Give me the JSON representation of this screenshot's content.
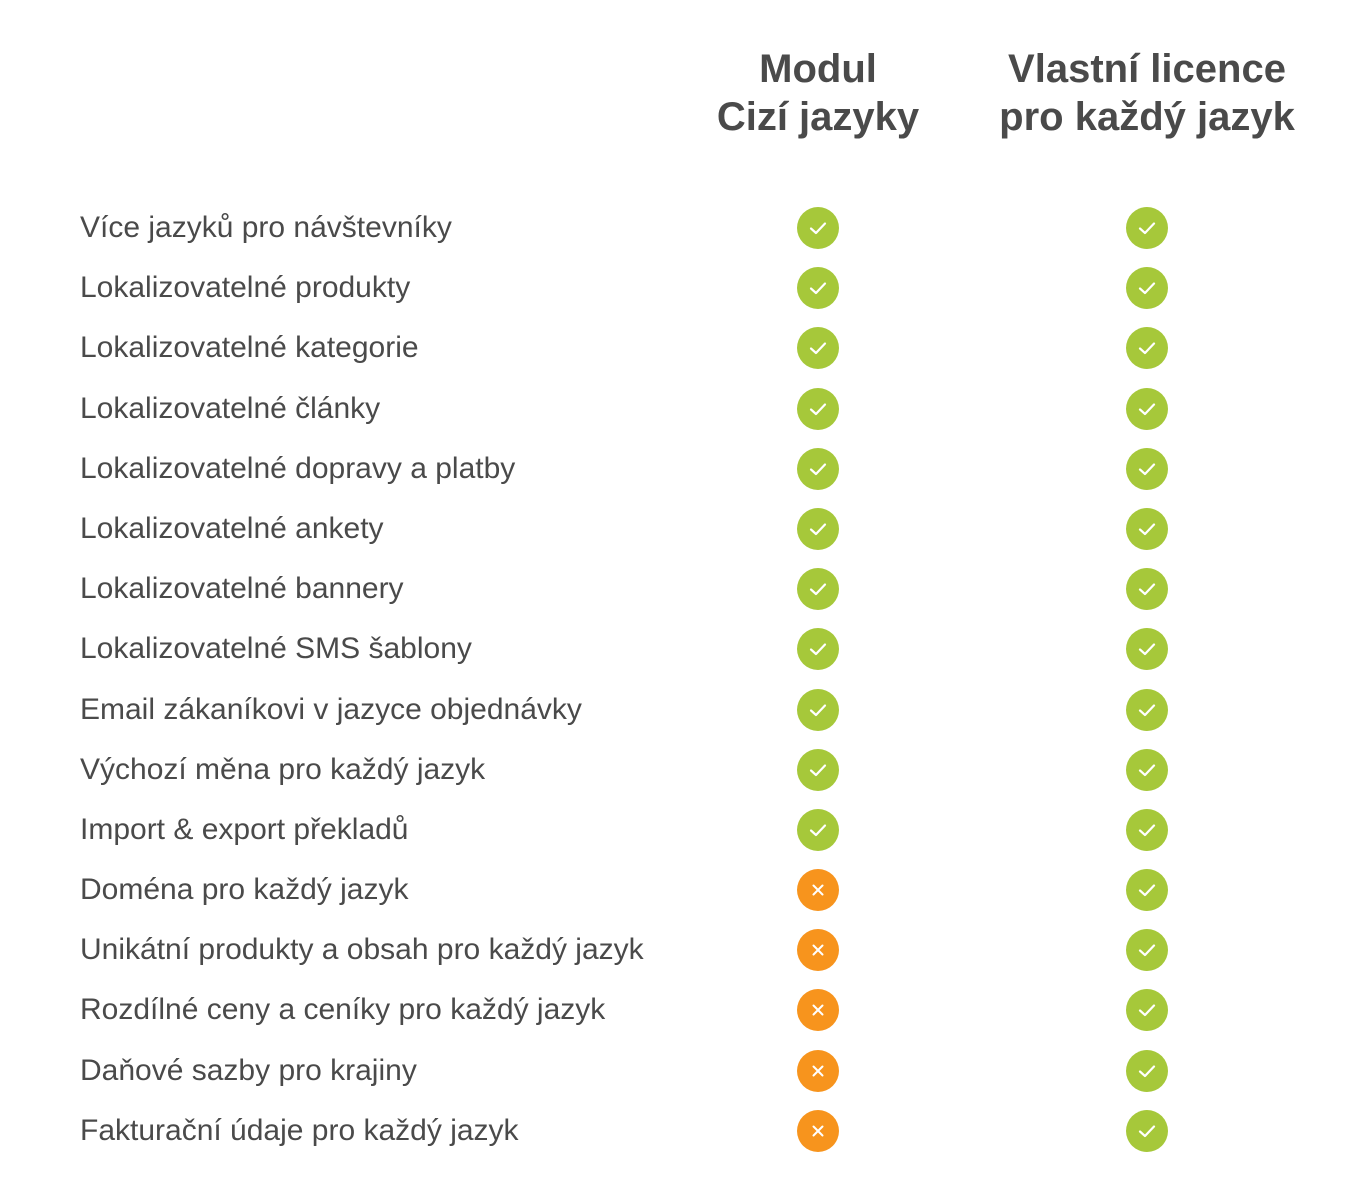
{
  "columns": [
    {
      "line1": "Modul",
      "line2": "Cizí jazyky"
    },
    {
      "line1": "Vlastní licence",
      "line2": "pro každý jazyk"
    }
  ],
  "colors": {
    "yes": "#a6c83a",
    "no": "#f7941d",
    "text": "#4a4a4a"
  },
  "icons": {
    "yes": "check-icon",
    "no": "cross-icon"
  },
  "rows": [
    {
      "feature": "Více jazyků pro návštevníky",
      "a": true,
      "b": true
    },
    {
      "feature": "Lokalizovatelné produkty",
      "a": true,
      "b": true
    },
    {
      "feature": "Lokalizovatelné kategorie",
      "a": true,
      "b": true
    },
    {
      "feature": "Lokalizovatelné články",
      "a": true,
      "b": true
    },
    {
      "feature": "Lokalizovatelné dopravy a platby",
      "a": true,
      "b": true
    },
    {
      "feature": "Lokalizovatelné ankety",
      "a": true,
      "b": true
    },
    {
      "feature": "Lokalizovatelné bannery",
      "a": true,
      "b": true
    },
    {
      "feature": "Lokalizovatelné SMS šablony",
      "a": true,
      "b": true
    },
    {
      "feature": "Email zákaníkovi v jazyce objednávky",
      "a": true,
      "b": true
    },
    {
      "feature": "Výchozí měna pro každý jazyk",
      "a": true,
      "b": true
    },
    {
      "feature": "Import & export překladů",
      "a": true,
      "b": true
    },
    {
      "feature": "Doména pro každý jazyk",
      "a": false,
      "b": true
    },
    {
      "feature": "Unikátní produkty a obsah pro každý jazyk",
      "a": false,
      "b": true
    },
    {
      "feature": "Rozdílné ceny a ceníky pro každý jazyk",
      "a": false,
      "b": true
    },
    {
      "feature": "Daňové sazby pro krajiny",
      "a": false,
      "b": true
    },
    {
      "feature": "Fakturační údaje pro každý jazyk",
      "a": false,
      "b": true
    }
  ]
}
